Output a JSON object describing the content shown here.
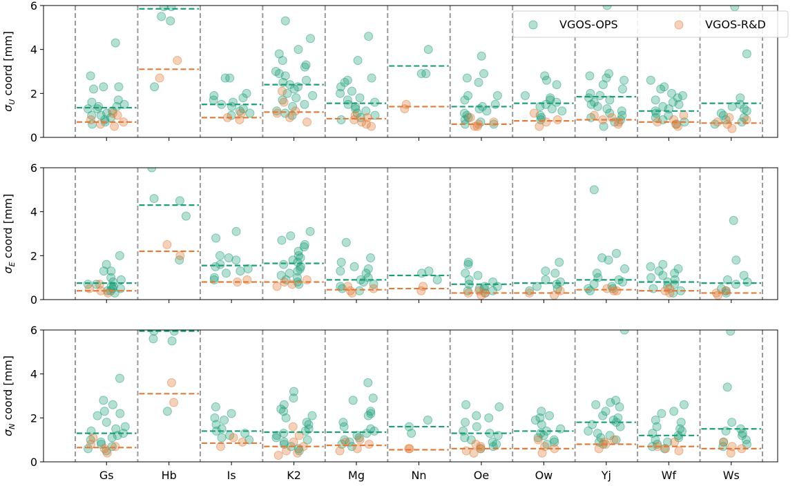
{
  "chart_data": {
    "type": "scatter",
    "categories": [
      "Gs",
      "Hb",
      "Is",
      "K2",
      "Mg",
      "Nn",
      "Oe",
      "Ow",
      "Yj",
      "Wf",
      "Ws"
    ],
    "colors": {
      "ops": "#1b9e77",
      "rd": "#e07b39",
      "separator": "#999999"
    },
    "legend": {
      "placement": "top-right",
      "entries": [
        "VGOS-OPS",
        "VGOS-R&D"
      ]
    },
    "ylim": [
      0,
      6
    ],
    "yticks": [
      "0",
      "2",
      "4",
      "6"
    ],
    "panels": [
      {
        "ylabel_sym": "σ",
        "ylabel_sub": "U",
        "ylabel_rest": " coord [mm]",
        "ops_median": [
          1.35,
          5.85,
          1.5,
          2.4,
          1.55,
          3.25,
          1.4,
          1.55,
          1.85,
          1.2,
          1.55
        ],
        "rd_median": [
          0.7,
          3.1,
          0.9,
          1.15,
          0.85,
          1.4,
          0.6,
          0.75,
          0.8,
          0.7,
          0.65
        ],
        "ops": [
          [
            4.3,
            2.8,
            2.3,
            2.3,
            2.2,
            1.7,
            1.6,
            1.5,
            1.4,
            1.4,
            1.3,
            1.3,
            1.2,
            1.1,
            1.0,
            1.0,
            0.9,
            0.8,
            0.7,
            0.6
          ],
          [
            5.95,
            5.95,
            5.5,
            5.3,
            2.3
          ],
          [
            2.7,
            2.7,
            2.0,
            1.9,
            1.8,
            1.7,
            1.6,
            1.5,
            1.4,
            1.3,
            1.2,
            1.1,
            1.0
          ],
          [
            5.3,
            4.5,
            4.0,
            3.8,
            3.5,
            3.3,
            3.2,
            3.0,
            2.9,
            2.8,
            2.6,
            2.5,
            2.4,
            2.3,
            2.2,
            2.0,
            1.9,
            1.8,
            1.7,
            1.5,
            1.4,
            1.2,
            1.1,
            1.0
          ],
          [
            4.6,
            3.5,
            2.7,
            2.6,
            2.5,
            2.3,
            2.1,
            2.0,
            1.8,
            1.7,
            1.6,
            1.5,
            1.4,
            1.3,
            1.2,
            1.1,
            1.0,
            0.9,
            0.8
          ],
          [
            4.0,
            2.9,
            2.9
          ],
          [
            3.7,
            2.9,
            2.7,
            2.5,
            1.9,
            1.9,
            1.7,
            1.5,
            1.4,
            1.3,
            1.2,
            1.1,
            1.0,
            0.9,
            0.8,
            0.7,
            0.6,
            0.6
          ],
          [
            2.8,
            2.6,
            2.4,
            1.9,
            1.8,
            1.7,
            1.6,
            1.5,
            1.4,
            1.3,
            1.2,
            1.0,
            0.9,
            0.8
          ],
          [
            6.0,
            2.9,
            2.8,
            2.7,
            2.6,
            2.4,
            2.2,
            2.0,
            1.9,
            1.8,
            1.7,
            1.6,
            1.5,
            1.4,
            1.3,
            1.2,
            1.1,
            1.0,
            0.9,
            0.8,
            0.7,
            0.5
          ],
          [
            2.6,
            2.3,
            2.2,
            2.0,
            1.9,
            1.8,
            1.7,
            1.6,
            1.5,
            1.4,
            1.3,
            1.2,
            1.1,
            1.0,
            0.9,
            0.8,
            0.7,
            0.6
          ],
          [
            5.95,
            3.8,
            1.8,
            1.5,
            1.4,
            1.3,
            1.2,
            1.1,
            1.0,
            0.9,
            0.8,
            0.7,
            0.6
          ]
        ],
        "rd": [
          [
            1.1,
            1.0,
            0.8,
            0.7,
            0.6,
            0.5
          ],
          [
            3.5,
            2.7
          ],
          [
            1.1,
            0.9,
            0.8
          ],
          [
            2.1,
            1.6,
            1.2,
            1.1,
            0.9,
            0.7
          ],
          [
            1.0,
            0.9,
            0.8,
            0.7,
            0.6,
            0.5
          ],
          [
            1.5,
            1.3
          ],
          [
            0.9,
            0.7,
            0.6,
            0.5,
            0.5
          ],
          [
            1.1,
            0.8,
            0.7,
            0.5
          ],
          [
            1.0,
            0.9,
            0.8,
            0.7,
            0.6
          ],
          [
            1.0,
            0.8,
            0.7,
            0.6,
            0.5
          ],
          [
            0.9,
            0.8,
            0.7,
            0.6,
            0.4
          ]
        ]
      },
      {
        "ylabel_sym": "σ",
        "ylabel_sub": "E",
        "ylabel_rest": " coord [mm]",
        "ops_median": [
          0.75,
          4.3,
          1.55,
          1.65,
          0.9,
          1.1,
          0.7,
          0.75,
          0.9,
          0.8,
          0.75
        ],
        "rd_median": [
          0.4,
          2.2,
          0.8,
          0.8,
          0.45,
          0.5,
          0.3,
          0.3,
          0.45,
          0.4,
          0.3
        ],
        "ops": [
          [
            2.0,
            1.6,
            1.3,
            1.3,
            1.0,
            0.9,
            0.8,
            0.7,
            0.7,
            0.6,
            0.6,
            0.5,
            0.5,
            0.4,
            0.4,
            0.3
          ],
          [
            6.0,
            4.6,
            4.5,
            3.8,
            1.8
          ],
          [
            3.1,
            2.8,
            2.0,
            1.9,
            1.8,
            1.6,
            1.5,
            1.4,
            1.3,
            1.2,
            1.0,
            0.9
          ],
          [
            3.1,
            2.9,
            2.7,
            2.5,
            2.4,
            2.2,
            2.0,
            1.9,
            1.8,
            1.7,
            1.6,
            1.5,
            1.4,
            1.3,
            1.2,
            1.1,
            1.0,
            0.9,
            0.8,
            0.7
          ],
          [
            2.6,
            1.9,
            1.7,
            1.5,
            1.4,
            1.3,
            1.2,
            1.0,
            0.9,
            0.8,
            0.7,
            0.6,
            0.5,
            0.4
          ],
          [
            1.3,
            1.2,
            0.9
          ],
          [
            1.7,
            1.6,
            1.2,
            1.1,
            0.9,
            0.8,
            0.7,
            0.6,
            0.6,
            0.5,
            0.5,
            0.4,
            0.4,
            0.3
          ],
          [
            1.7,
            1.3,
            1.2,
            0.9,
            0.8,
            0.7,
            0.6,
            0.5,
            0.4
          ],
          [
            5.0,
            2.1,
            1.9,
            1.8,
            1.4,
            1.2,
            1.0,
            0.9,
            0.8,
            0.7,
            0.6,
            0.5,
            0.5,
            0.4
          ],
          [
            1.6,
            1.5,
            1.4,
            1.3,
            1.2,
            1.1,
            1.0,
            0.9,
            0.8,
            0.7,
            0.6,
            0.5,
            0.4,
            0.3
          ],
          [
            3.6,
            1.8,
            1.1,
            0.9,
            0.8,
            0.7,
            0.5,
            0.4,
            0.3
          ]
        ],
        "rd": [
          [
            0.7,
            0.5,
            0.4,
            0.3
          ],
          [
            2.5,
            2.0
          ],
          [
            0.9,
            0.8
          ],
          [
            0.9,
            0.8,
            0.7,
            0.6
          ],
          [
            0.6,
            0.5,
            0.4,
            0.3
          ],
          [
            0.6,
            0.4
          ],
          [
            0.4,
            0.3,
            0.3,
            0.2
          ],
          [
            0.4,
            0.3,
            0.2
          ],
          [
            0.5,
            0.4,
            0.4
          ],
          [
            0.5,
            0.4,
            0.3
          ],
          [
            0.4,
            0.3,
            0.2
          ]
        ]
      },
      {
        "ylabel_sym": "σ",
        "ylabel_sub": "N",
        "ylabel_rest": " coord [mm]",
        "ops_median": [
          1.3,
          5.95,
          1.4,
          1.35,
          1.35,
          1.6,
          1.3,
          1.4,
          1.8,
          1.2,
          1.5
        ],
        "rd_median": [
          0.65,
          3.1,
          0.85,
          0.7,
          0.75,
          0.55,
          0.6,
          0.6,
          0.8,
          0.7,
          0.6
        ],
        "ops": [
          [
            3.8,
            2.8,
            2.6,
            2.3,
            2.2,
            2.1,
            1.8,
            1.6,
            1.5,
            1.4,
            1.3,
            1.2,
            1.1,
            1.0,
            0.9,
            0.8,
            0.7,
            0.6,
            0.5
          ],
          [
            5.95,
            5.95,
            5.6,
            5.5,
            2.3
          ],
          [
            2.5,
            2.2,
            2.0,
            1.9,
            1.7,
            1.5,
            1.4,
            1.3,
            1.2,
            1.1,
            1.0
          ],
          [
            3.2,
            2.9,
            2.6,
            2.4,
            2.3,
            2.1,
            2.0,
            1.8,
            1.7,
            1.5,
            1.4,
            1.3,
            1.2,
            1.1,
            1.0,
            0.9,
            0.8,
            0.7,
            0.6,
            0.5
          ],
          [
            3.6,
            2.9,
            2.8,
            2.3,
            2.2,
            2.1,
            1.8,
            1.6,
            1.5,
            1.4,
            1.3,
            1.2,
            1.1,
            1.0,
            0.9,
            0.8,
            0.7
          ],
          [
            1.9,
            1.6,
            1.3
          ],
          [
            2.6,
            2.5,
            2.1,
            2.0,
            1.8,
            1.6,
            1.4,
            1.3,
            1.2,
            1.1,
            1.0,
            0.9,
            0.8,
            0.7,
            0.6
          ],
          [
            2.3,
            2.1,
            2.0,
            1.9,
            1.7,
            1.5,
            1.4,
            1.3,
            1.2,
            1.1,
            1.0,
            0.9,
            0.8
          ],
          [
            6.0,
            2.8,
            2.7,
            2.6,
            2.5,
            2.3,
            2.1,
            2.0,
            1.9,
            1.8,
            1.7,
            1.6,
            1.4,
            1.3,
            1.2,
            1.1,
            1.0,
            0.9,
            0.8
          ],
          [
            2.6,
            2.3,
            2.2,
            1.9,
            1.8,
            1.6,
            1.5,
            1.4,
            1.3,
            1.2,
            1.1,
            1.0,
            0.9,
            0.8,
            0.7,
            0.6
          ],
          [
            5.95,
            3.4,
            1.8,
            1.5,
            1.4,
            1.3,
            1.2,
            1.0,
            0.9,
            0.8,
            0.7
          ]
        ],
        "rd": [
          [
            1.1,
            0.8,
            0.7,
            0.6,
            0.4
          ],
          [
            3.6,
            2.7
          ],
          [
            1.1,
            0.9,
            0.7
          ],
          [
            1.6,
            1.2,
            0.9,
            0.7,
            0.5,
            0.4,
            0.3
          ],
          [
            1.0,
            0.9,
            0.8,
            0.6,
            0.5
          ],
          [
            0.6,
            0.6
          ],
          [
            0.8,
            0.7,
            0.6,
            0.5,
            0.4
          ],
          [
            1.0,
            0.7,
            0.6,
            0.4
          ],
          [
            1.0,
            0.9,
            0.8,
            0.6
          ],
          [
            0.9,
            0.7,
            0.6,
            0.5
          ],
          [
            0.9,
            0.7,
            0.6,
            0.4
          ]
        ]
      }
    ]
  }
}
